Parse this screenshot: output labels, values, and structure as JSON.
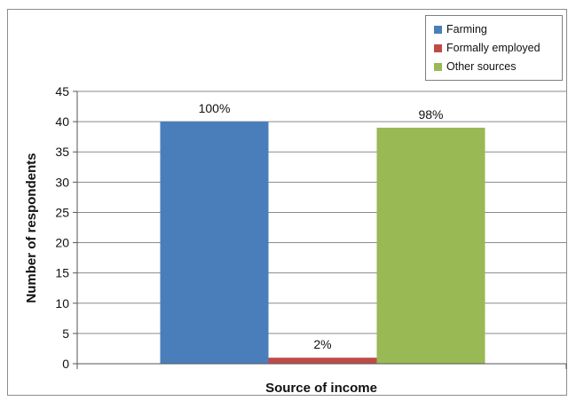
{
  "chart_data": {
    "type": "bar",
    "title": "",
    "xlabel": "Source of income",
    "ylabel": "Number of respondents",
    "categories": [
      ""
    ],
    "ylim": [
      0,
      45
    ],
    "yticks": [
      0,
      5,
      10,
      15,
      20,
      25,
      30,
      35,
      40,
      45
    ],
    "grid": true,
    "legend_position": "top-right",
    "series": [
      {
        "name": "Farming",
        "values": [
          40
        ],
        "data_label": "100%",
        "color": "#4a7ebb"
      },
      {
        "name": "Formally employed",
        "values": [
          1
        ],
        "data_label": "2%",
        "color": "#be4b48"
      },
      {
        "name": "Other sources",
        "values": [
          39
        ],
        "data_label": "98%",
        "color": "#98b954"
      }
    ]
  }
}
